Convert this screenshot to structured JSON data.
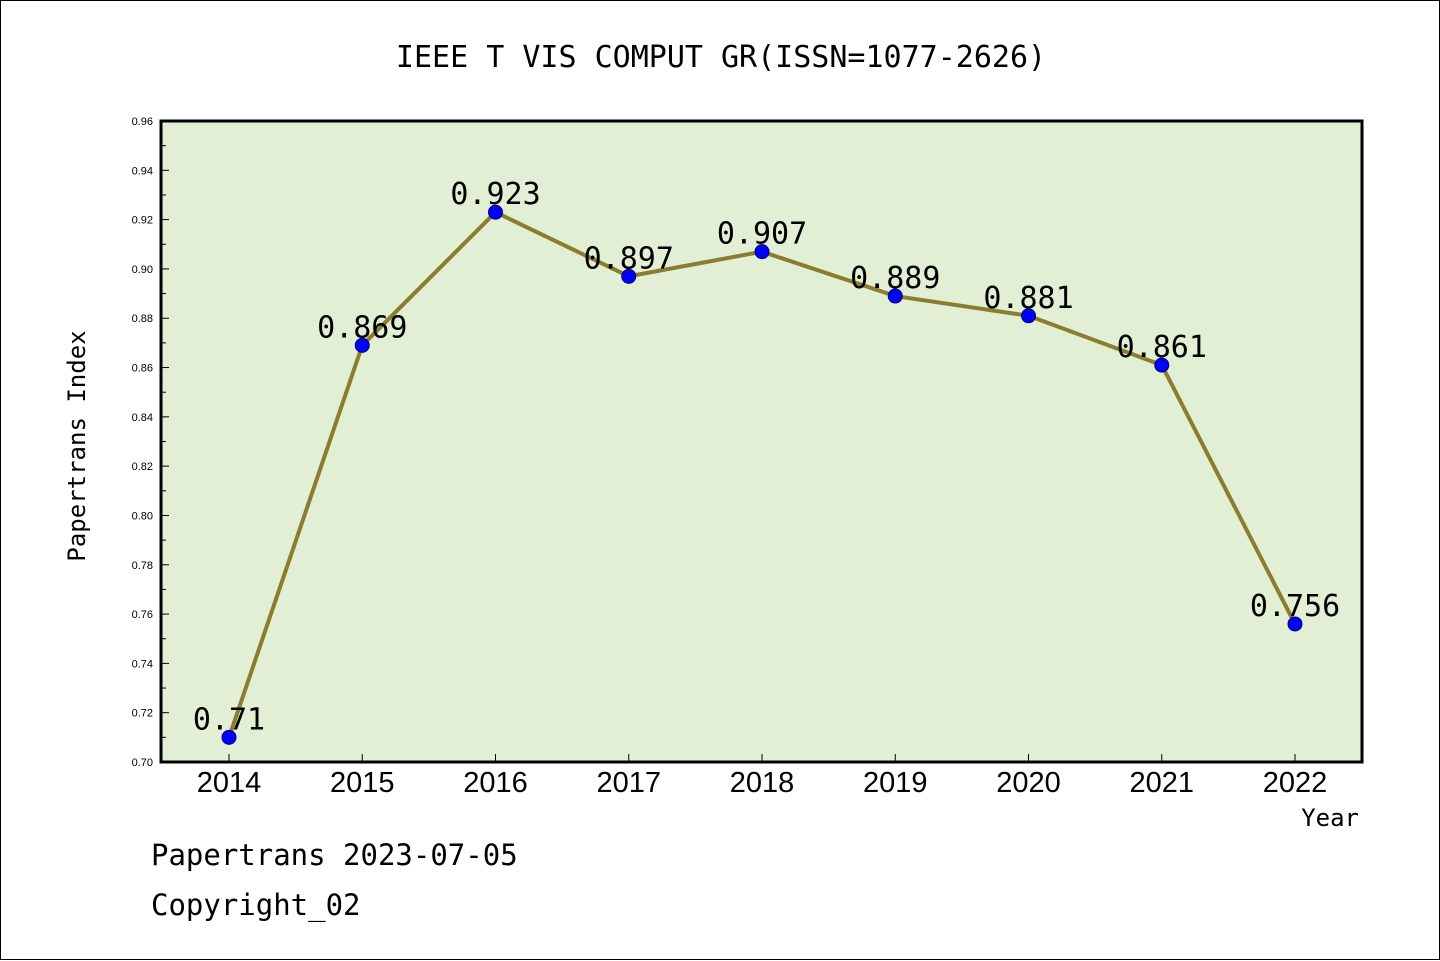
{
  "chart_data": {
    "type": "line",
    "title": "IEEE T VIS COMPUT GR(ISSN=1077-2626)",
    "xlabel": "Year",
    "ylabel": "Papertrans Index",
    "categories": [
      "2014",
      "2015",
      "2016",
      "2017",
      "2018",
      "2019",
      "2020",
      "2021",
      "2022"
    ],
    "values": [
      0.71,
      0.869,
      0.923,
      0.897,
      0.907,
      0.889,
      0.881,
      0.861,
      0.756
    ],
    "data_labels": [
      "0.71",
      "0.869",
      "0.923",
      "0.897",
      "0.907",
      "0.889",
      "0.881",
      "0.861",
      "0.756"
    ],
    "ylim": [
      0.7,
      0.96
    ],
    "yticks": [
      "0.70",
      "0.72",
      "0.74",
      "0.76",
      "0.78",
      "0.80",
      "0.82",
      "0.84",
      "0.86",
      "0.88",
      "0.90",
      "0.92",
      "0.94",
      "0.96"
    ],
    "grid": false,
    "colors": {
      "line": "#8B7D2E",
      "marker": "#0000FF",
      "plot_bg": "#E2EFD5"
    }
  },
  "footer": {
    "line1": "Papertrans 2023-07-05",
    "line2": "Copyright_02"
  }
}
